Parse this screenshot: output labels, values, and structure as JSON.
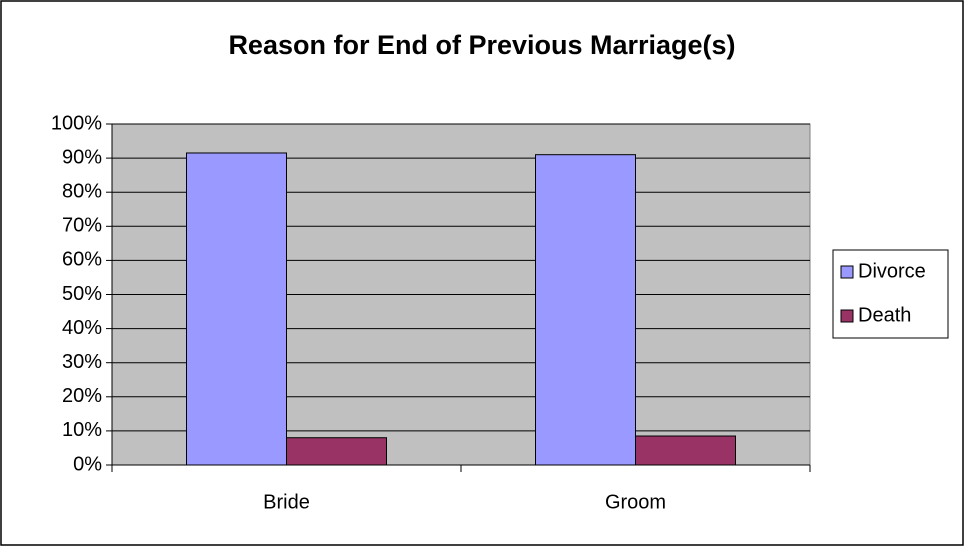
{
  "chart_data": {
    "type": "bar",
    "title": "Reason for End of Previous Marriage(s)",
    "categories": [
      "Bride",
      "Groom"
    ],
    "series": [
      {
        "name": "Divorce",
        "color": "#9999ff",
        "values": [
          91.5,
          91
        ]
      },
      {
        "name": "Death",
        "color": "#993366",
        "values": [
          8,
          8.5
        ]
      }
    ],
    "ylim": [
      0,
      100
    ],
    "yticks": [
      {
        "value": 0,
        "label": "0%"
      },
      {
        "value": 10,
        "label": "10%"
      },
      {
        "value": 20,
        "label": "20%"
      },
      {
        "value": 30,
        "label": "30%"
      },
      {
        "value": 40,
        "label": "40%"
      },
      {
        "value": 50,
        "label": "50%"
      },
      {
        "value": 60,
        "label": "60%"
      },
      {
        "value": 70,
        "label": "70%"
      },
      {
        "value": 80,
        "label": "80%"
      },
      {
        "value": 90,
        "label": "90%"
      },
      {
        "value": 100,
        "label": "100%"
      }
    ],
    "grid": true,
    "legend": "right"
  }
}
